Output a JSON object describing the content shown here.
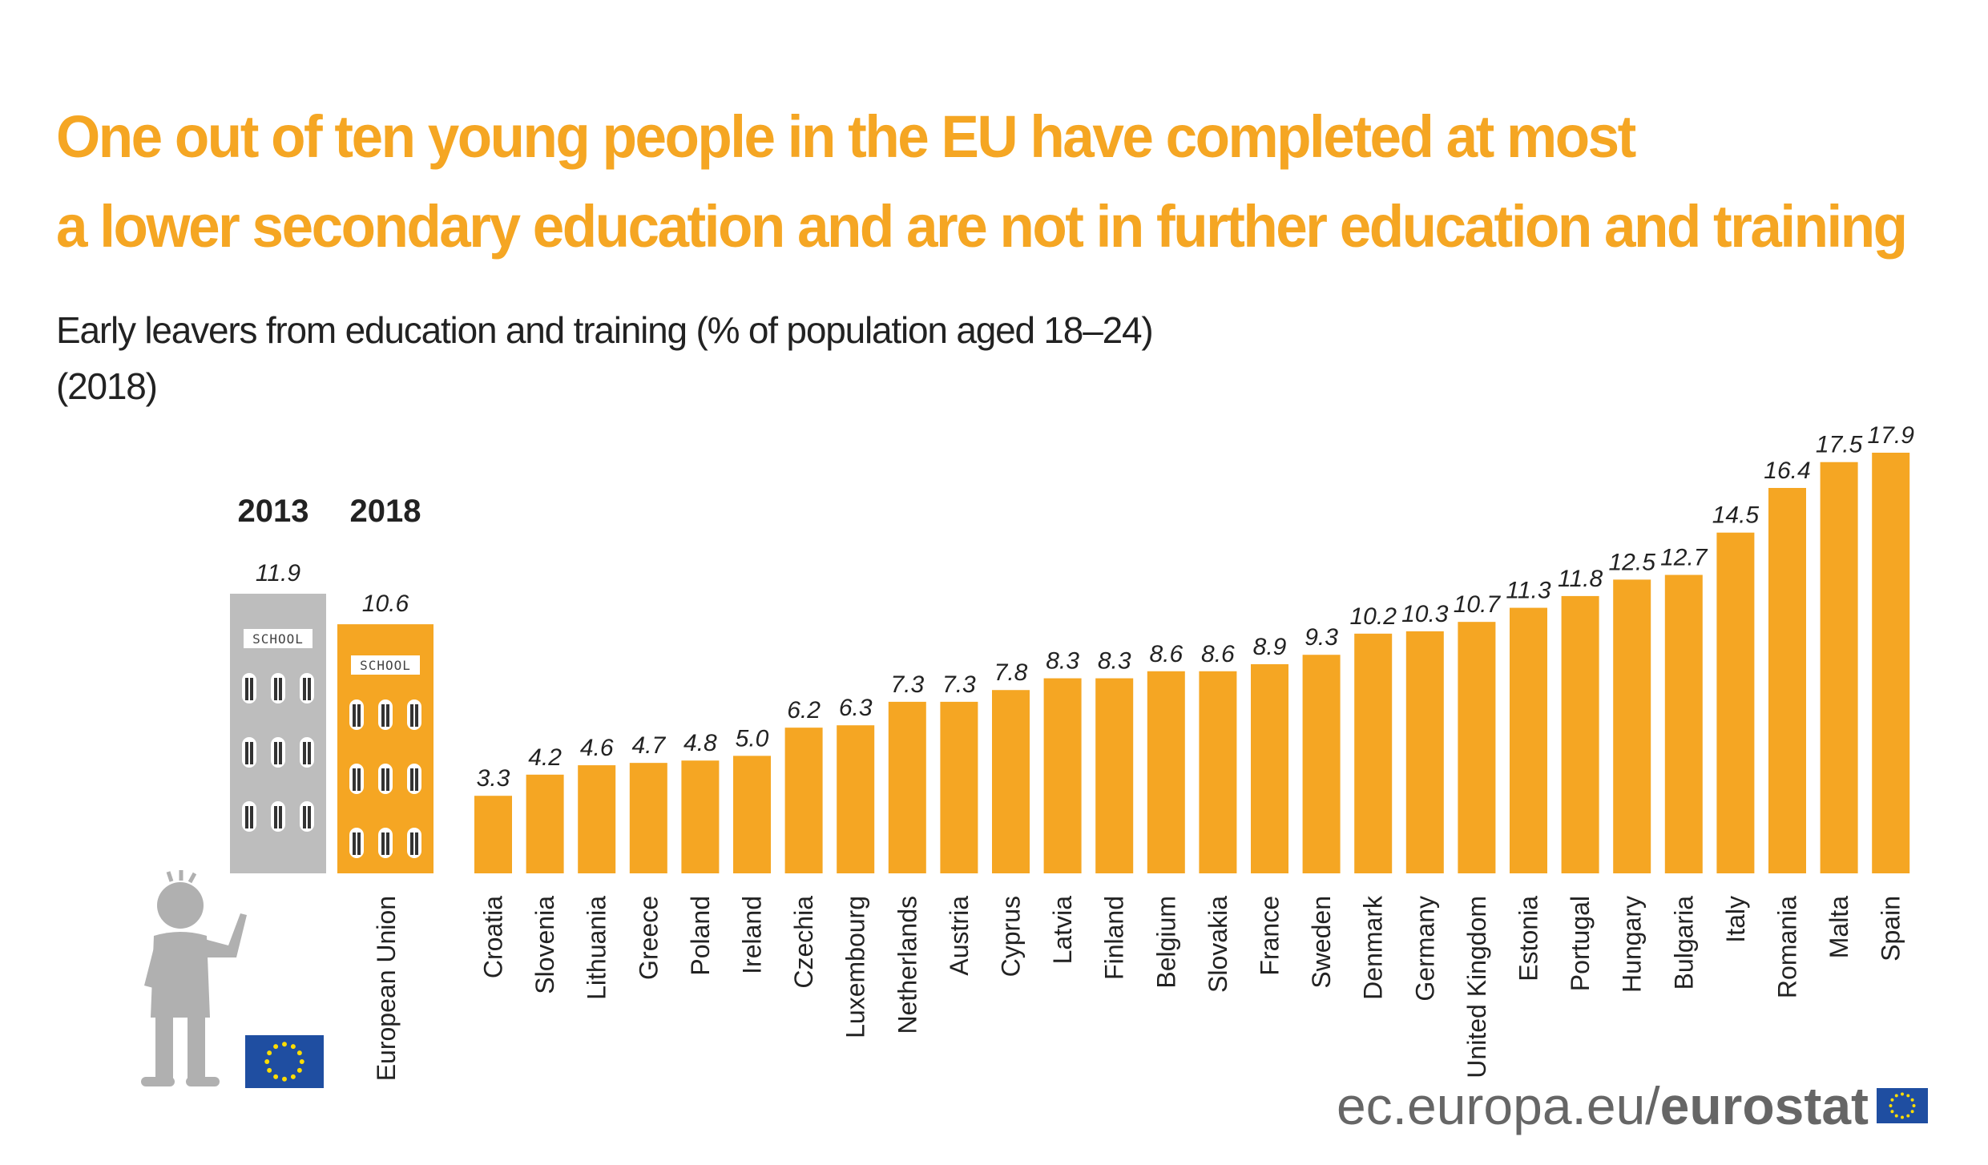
{
  "header": {
    "title_line1": "One out of ten young people in the EU have completed at most",
    "title_line2": "a lower secondary education and are not in further education and training",
    "subtitle_line1": "Early leavers from education and training (% of population aged 18–24)",
    "subtitle_line2": "(2018)"
  },
  "colors": {
    "accent": "#f5a623",
    "eu_2013_building": "#bdbdbd",
    "text": "#222222",
    "footer_text": "#666666",
    "eu_flag_blue": "#1f4ea1",
    "eu_flag_star": "#ffdd00"
  },
  "eu_panel": {
    "year_2013": "2013",
    "year_2018": "2018",
    "value_2013": "11.9",
    "value_2018": "10.6",
    "school_sign": "SCHOOL",
    "eu_label": "European Union"
  },
  "chart_data": {
    "type": "bar",
    "categories": [
      "Croatia",
      "Slovenia",
      "Lithuania",
      "Greece",
      "Poland",
      "Ireland",
      "Czechia",
      "Luxembourg",
      "Netherlands",
      "Austria",
      "Cyprus",
      "Latvia",
      "Finland",
      "Belgium",
      "Slovakia",
      "France",
      "Sweden",
      "Denmark",
      "Germany",
      "United Kingdom",
      "Estonia",
      "Portugal",
      "Hungary",
      "Bulgaria",
      "Italy",
      "Romania",
      "Malta",
      "Spain"
    ],
    "values": [
      3.3,
      4.2,
      4.6,
      4.7,
      4.8,
      5.0,
      6.2,
      6.3,
      7.3,
      7.3,
      7.8,
      8.3,
      8.3,
      8.6,
      8.6,
      8.9,
      9.3,
      10.2,
      10.3,
      10.7,
      11.3,
      11.8,
      12.5,
      12.7,
      14.5,
      16.4,
      17.5,
      17.9
    ],
    "labels": [
      "3.3",
      "4.2",
      "4.6",
      "4.7",
      "4.8",
      "5.0",
      "6.2",
      "6.3",
      "7.3",
      "7.3",
      "7.8",
      "8.3",
      "8.3",
      "8.6",
      "8.6",
      "8.9",
      "9.3",
      "10.2",
      "10.3",
      "10.7",
      "11.3",
      "11.8",
      "12.5",
      "12.7",
      "14.5",
      "16.4",
      "17.5",
      "17.9"
    ],
    "eu_values": {
      "2013": 11.9,
      "2018": 10.6
    },
    "unit": "% of population aged 18–24",
    "ylim": [
      0,
      18.5
    ],
    "grid": false,
    "legend": "none"
  },
  "footer": {
    "domain": "ec.europa.eu/",
    "brand": "eurostat"
  },
  "icons": {
    "person": "person-waving-icon",
    "eu_flag": "eu-flag-icon"
  }
}
